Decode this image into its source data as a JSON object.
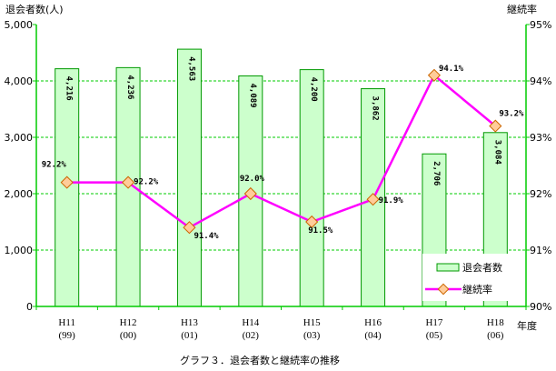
{
  "chart_data": {
    "type": "bar",
    "categories": [
      "H11",
      "H12",
      "H13",
      "H14",
      "H15",
      "H16",
      "H17",
      "H18"
    ],
    "categories_sub": [
      "(99)",
      "(00)",
      "(01)",
      "(02)",
      "(03)",
      "(04)",
      "(05)",
      "(06)"
    ],
    "xlabel": "年度",
    "ylabel_left": "退会者数(人)",
    "ylabel_right": "継続率",
    "ylim_left": [
      0,
      5000
    ],
    "ylim_right": [
      90,
      95
    ],
    "yticks_left": [
      "0",
      "1,000",
      "2,000",
      "3,000",
      "4,000",
      "5,000"
    ],
    "yticks_right": [
      "90%",
      "91%",
      "92%",
      "93%",
      "94%",
      "95%"
    ],
    "grid": true,
    "legend_position": "bottom-right",
    "caption": "グラフ３．退会者数と継続率の推移",
    "series": [
      {
        "name": "退会者数",
        "type": "bar",
        "axis": "left",
        "values": [
          4216,
          4236,
          4563,
          4089,
          4200,
          3862,
          2706,
          3084
        ],
        "labels": [
          "4,216",
          "4,236",
          "4,563",
          "4,089",
          "4,200",
          "3,862",
          "2,706",
          "3,084"
        ]
      },
      {
        "name": "継続率",
        "type": "line",
        "axis": "right",
        "values": [
          92.2,
          92.2,
          91.4,
          92.0,
          91.5,
          91.9,
          94.1,
          93.2
        ],
        "labels": [
          "92.2%",
          "92.2%",
          "91.4%",
          "92.0%",
          "91.5%",
          "91.9%",
          "94.1%",
          "93.2%"
        ]
      }
    ]
  },
  "colors": {
    "bar_fill": "#ccffcc",
    "bar_stroke": "#009900",
    "line": "#ff00ff",
    "marker_fill": "#ffcc99",
    "marker_stroke": "#cc6600",
    "grid": "#00cc00",
    "axis": "#00cc00"
  }
}
